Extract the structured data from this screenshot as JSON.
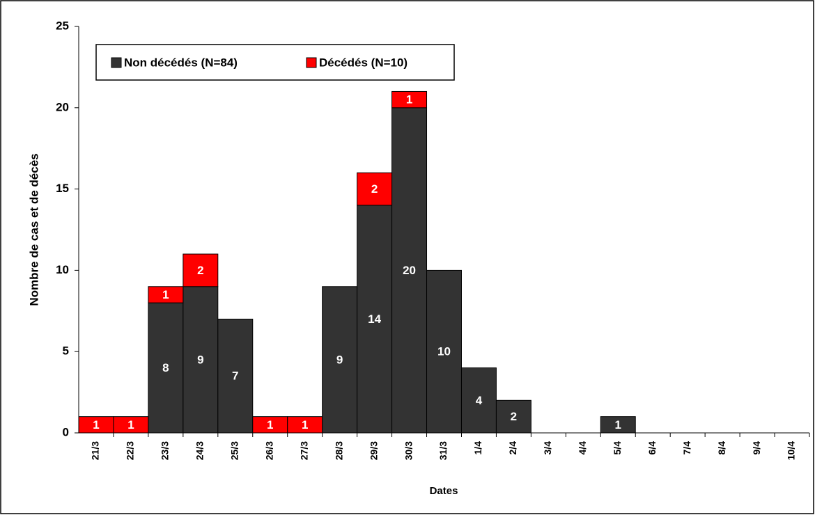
{
  "chart_data": {
    "type": "stacked_bar",
    "x_label": "Dates",
    "y_label": "Nombre de cas et de décès",
    "categories": [
      "21/3",
      "22/3",
      "23/3",
      "24/3",
      "25/3",
      "26/3",
      "27/3",
      "28/3",
      "29/3",
      "30/3",
      "31/3",
      "1/4",
      "2/4",
      "3/4",
      "4/4",
      "5/4",
      "6/4",
      "7/4",
      "8/4",
      "9/4",
      "10/4"
    ],
    "series": [
      {
        "name": "Non décédés (N=84)",
        "color": "#333333",
        "values": [
          0,
          0,
          8,
          9,
          7,
          0,
          0,
          9,
          14,
          20,
          10,
          4,
          2,
          0,
          0,
          1,
          0,
          0,
          0,
          0,
          0
        ]
      },
      {
        "name": "Décédés (N=10)",
        "color": "#ff0000",
        "values": [
          1,
          1,
          1,
          2,
          0,
          1,
          1,
          0,
          2,
          1,
          0,
          0,
          0,
          0,
          0,
          0,
          0,
          0,
          0,
          0,
          0
        ]
      }
    ],
    "ylim": [
      0,
      25
    ],
    "yticks": [
      0,
      5,
      10,
      15,
      20,
      25
    ],
    "grid": false
  }
}
